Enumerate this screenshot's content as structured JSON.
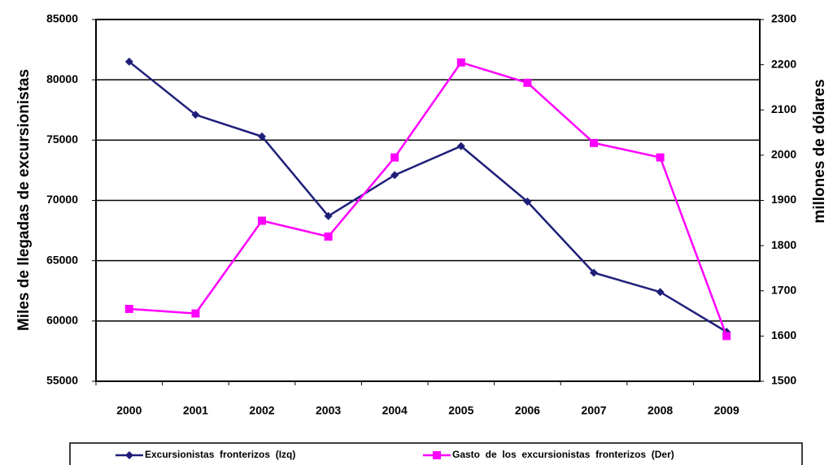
{
  "chart_data": {
    "type": "line",
    "y_label": "Miles de llegadas de  excursionistas",
    "y2_label": "millones de dólares",
    "categories": [
      "2000",
      "2001",
      "2002",
      "2003",
      "2004",
      "2005",
      "2006",
      "2007",
      "2008",
      "2009"
    ],
    "ylim": [
      55000,
      85000
    ],
    "yticks": [
      55000,
      60000,
      65000,
      70000,
      75000,
      80000,
      85000
    ],
    "y2lim": [
      1500,
      2300
    ],
    "y2ticks": [
      1500,
      1600,
      1700,
      1800,
      1900,
      2000,
      2100,
      2200,
      2300
    ],
    "grid": true,
    "series": [
      {
        "name": "Excursionistas  fronterizos  (Izq)",
        "color": "#1f1f7a",
        "marker": "diamond",
        "values": [
          81500,
          77100,
          75300,
          68700,
          72100,
          74500,
          69900,
          64000,
          62400,
          59100
        ]
      },
      {
        "name": "Gasto  de  los  excursionistas  fronterizos  (Der)",
        "color": "#ff00ff",
        "marker": "square",
        "axis": "y2",
        "values": [
          1660,
          1650,
          1855,
          1820,
          1995,
          2205,
          2160,
          2027,
          1995,
          1600
        ]
      }
    ]
  }
}
